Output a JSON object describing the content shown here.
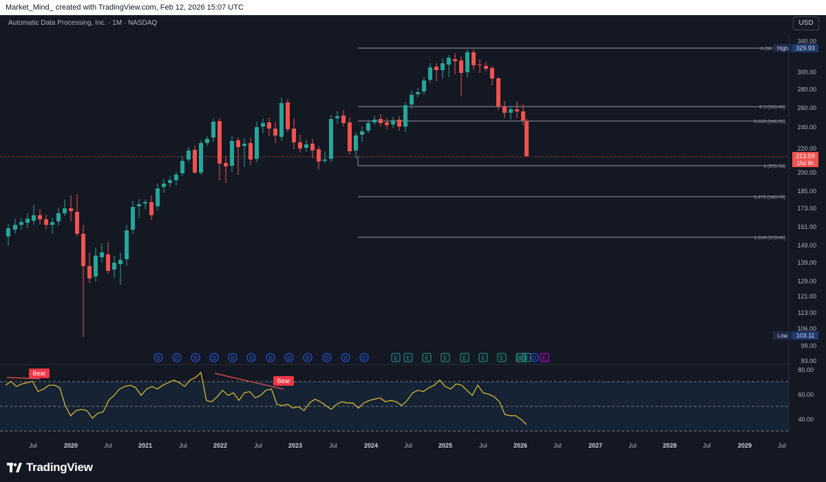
{
  "header": {
    "attribution": "Market_Mind_ created with TradingView.com, Feb 12, 2026 15:07 UTC"
  },
  "symbol_info": "Automatic Data Processing, Inc. · 1M · NASDAQ",
  "currency_button": "USD",
  "brand": {
    "name": "TradingView"
  },
  "colors": {
    "background": "#141823",
    "up": "#26a69a",
    "down": "#ef5350",
    "rsi_line": "#e6c430",
    "grid_text": "#b2b5be",
    "fib_line": "#9598a1"
  },
  "price_axis": {
    "ticks": [
      "340.00",
      "300.00",
      "280.00",
      "260.00",
      "240.00",
      "220.00",
      "200.00",
      "185.00",
      "173.00",
      "161.00",
      "149.00",
      "139.00",
      "129.00",
      "121.00",
      "113.00",
      "106.00",
      "99.00",
      "93.00"
    ]
  },
  "price_labels": {
    "high_tag": "High",
    "high_value": "329.93",
    "current_price": "213.59",
    "countdown": "15d 6h",
    "low_tag": "Low",
    "low_value": "103.11",
    "top_fib": "0 (32"
  },
  "fib_levels": [
    {
      "label": "0.5 (260.40)",
      "price": 260.4
    },
    {
      "label": "0.618 (246.26)",
      "price": 246.26
    },
    {
      "label": "1 (205.53)",
      "price": 205.53
    },
    {
      "label": "1.272 (180.70)",
      "price": 180.7
    },
    {
      "label": "1.618 (153.41)",
      "price": 153.41
    }
  ],
  "event_markers": [
    "D",
    "D",
    "D",
    "D",
    "D",
    "D",
    "D",
    "D",
    "D",
    "D",
    "D",
    "D",
    "E",
    "E",
    "E",
    "E",
    "E",
    "E",
    "E",
    "E",
    "E",
    "E",
    "D",
    "E"
  ],
  "rsi": {
    "axis_ticks": [
      "80.00",
      "60.00",
      "40.00"
    ],
    "bear_labels": [
      "Bear",
      "Bear"
    ],
    "values": [
      68,
      71,
      67,
      69,
      70,
      71,
      63,
      65,
      68,
      68,
      66,
      52,
      44,
      48,
      49,
      48,
      42,
      46,
      47,
      56,
      60,
      65,
      67,
      68,
      66,
      60,
      65,
      67,
      65,
      68,
      70,
      72,
      70,
      67,
      72,
      74,
      78,
      56,
      55,
      59,
      64,
      60,
      62,
      56,
      62,
      63,
      58,
      60,
      64,
      65,
      53,
      52,
      53,
      50,
      51,
      48,
      54,
      57,
      55,
      52,
      49,
      53,
      55,
      54,
      54,
      50,
      54,
      56,
      57,
      58,
      55,
      56,
      55,
      52,
      56,
      62,
      64,
      63,
      66,
      68,
      72,
      67,
      65,
      69,
      68,
      64,
      60,
      68,
      62,
      61,
      59,
      55,
      45,
      44,
      44,
      41,
      37
    ]
  },
  "time_axis": [
    "Jul",
    "2020",
    "Jul",
    "2021",
    "Jul",
    "2022",
    "Jul",
    "2023",
    "Jul",
    "2024",
    "Jul",
    "2025",
    "Jul",
    "2026",
    "Jul",
    "2027",
    "Jul",
    "2028",
    "Jul",
    "2029",
    "Jul"
  ]
}
